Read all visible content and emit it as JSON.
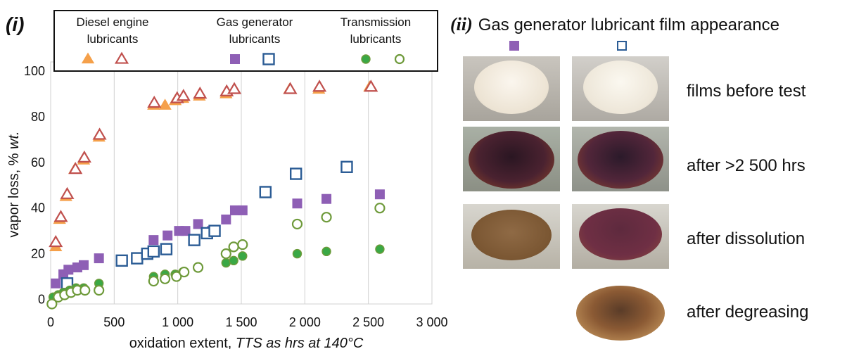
{
  "chart_data": {
    "type": "scatter",
    "panel_label": "(i)",
    "xlabel_prefix": "oxidation extent, ",
    "xlabel_italic": "TTS as hrs at 140°C",
    "ylabel_prefix": "vapor loss, % ",
    "ylabel_italic": "wt.",
    "xlim": [
      0,
      3000
    ],
    "ylim": [
      -2,
      104
    ],
    "x_ticks": [
      0,
      500,
      1000,
      1500,
      2000,
      2500,
      3000
    ],
    "x_tick_labels": [
      "0",
      "500",
      "1 000",
      "1 500",
      "2 000",
      "2 500",
      "3 000"
    ],
    "y_ticks": [
      0,
      20,
      40,
      60,
      80,
      100
    ],
    "y_tick_labels": [
      "0",
      "20",
      "40",
      "60",
      "80",
      "100"
    ],
    "grid": "vertical",
    "legend_placement": "top",
    "legend_groups": [
      {
        "line1": "Diesel engine",
        "line2": "lubricants"
      },
      {
        "line1": "Gas generator",
        "line2": "lubricants"
      },
      {
        "line1": "Transmission",
        "line2": "lubricants"
      }
    ],
    "series": [
      {
        "group": 0,
        "marker": "triangle-filled",
        "color": "#f5a04a",
        "stroke": "#f5a04a",
        "x": [
          40,
          70,
          120,
          190,
          260,
          380,
          810,
          900,
          980,
          1040,
          1170,
          1380,
          1880,
          2110,
          2510
        ],
        "y": [
          23,
          35,
          45,
          57,
          61,
          71,
          85,
          85,
          87,
          88,
          89,
          90,
          92,
          92,
          93
        ]
      },
      {
        "group": 0,
        "marker": "triangle-open",
        "color": "#ffffff",
        "stroke": "#c0504d",
        "x": [
          40,
          80,
          130,
          195,
          265,
          385,
          815,
          995,
          1045,
          1175,
          1385,
          1445,
          1885,
          2115,
          2520
        ],
        "y": [
          25,
          36,
          46,
          57,
          62,
          72,
          86,
          88,
          89,
          90,
          91,
          92,
          92,
          93,
          93
        ]
      },
      {
        "group": 1,
        "marker": "square-filled",
        "color": "#8e5fb5",
        "stroke": "#8e5fb5",
        "x": [
          40,
          100,
          140,
          210,
          260,
          380,
          810,
          920,
          1010,
          1060,
          1160,
          1270,
          1380,
          1450,
          1510,
          1940,
          2170,
          2590
        ],
        "y": [
          7,
          11,
          13,
          14,
          15,
          18,
          26,
          28,
          30,
          30,
          33,
          30,
          35,
          39,
          39,
          42,
          44,
          46
        ]
      },
      {
        "group": 1,
        "marker": "square-open",
        "color": "#ffffff",
        "stroke": "#2b5c95",
        "x": [
          130,
          560,
          680,
          760,
          810,
          910,
          1130,
          1230,
          1290,
          1690,
          1930,
          2330
        ],
        "y": [
          7,
          17,
          18,
          20,
          21,
          22,
          26,
          29,
          30,
          47,
          55,
          58
        ]
      },
      {
        "group": 2,
        "marker": "circle-filled",
        "color": "#3aa845",
        "stroke": "#6e9a3a",
        "x": [
          20,
          60,
          100,
          150,
          200,
          260,
          380,
          810,
          900,
          980,
          1040,
          1160,
          1380,
          1440,
          1510,
          1940,
          2170,
          2590
        ],
        "y": [
          1,
          2,
          3,
          4,
          5,
          5,
          7,
          10,
          11,
          11,
          12,
          14,
          16,
          17,
          19,
          20,
          21,
          22
        ]
      },
      {
        "group": 2,
        "marker": "circle-open",
        "color": "#ffffff",
        "stroke": "#6e9a3a",
        "x": [
          10,
          60,
          110,
          160,
          210,
          270,
          380,
          810,
          900,
          990,
          1050,
          1160,
          1380,
          1440,
          1510,
          1940,
          2170,
          2590
        ],
        "y": [
          -2,
          1,
          2,
          3,
          4,
          4,
          4,
          8,
          9,
          10,
          12,
          14,
          20,
          23,
          24,
          33,
          36,
          40
        ]
      }
    ]
  },
  "photos_panel": {
    "panel_label": "(ii)",
    "title": "Gas generator lubricant film appearance",
    "rows": [
      {
        "label": "films before test"
      },
      {
        "label": "after >2 500 hrs"
      },
      {
        "label": "after dissolution"
      },
      {
        "label": "after degreasing"
      }
    ]
  }
}
